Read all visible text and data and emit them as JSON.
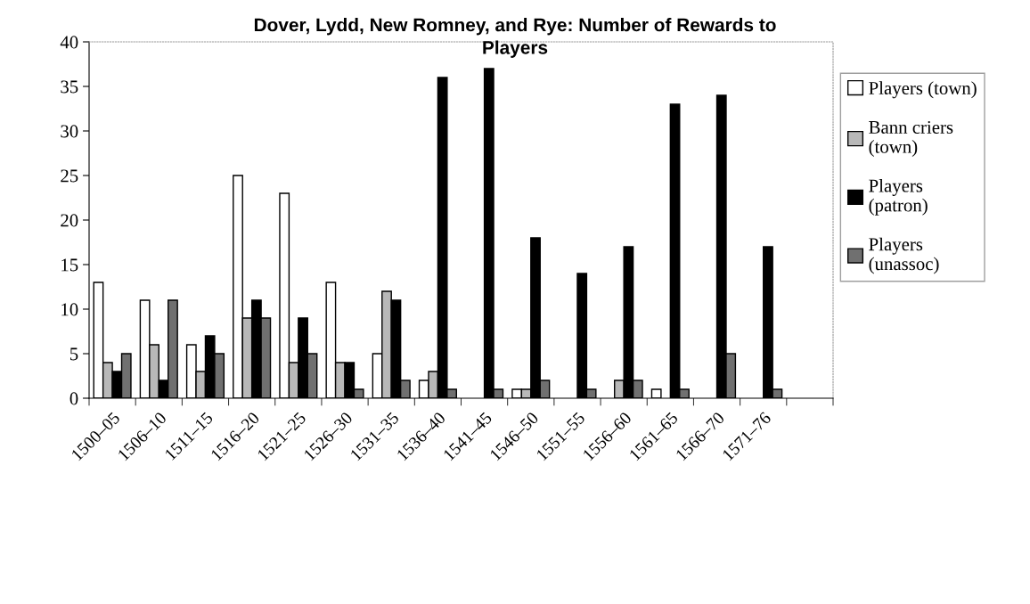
{
  "chart_data": {
    "type": "bar",
    "title": "Dover, Lydd, New Romney, and Rye: Number of Rewards to\nPlayers",
    "categories": [
      "1500–05",
      "1506–10",
      "1511–15",
      "1516–20",
      "1521–25",
      "1526–30",
      "1531–35",
      "1536–40",
      "1541–45",
      "1546–50",
      "1551–55",
      "1556–60",
      "1561–65",
      "1566–70",
      "1571–76",
      null
    ],
    "series": [
      {
        "name": "Players (town)",
        "color": "#ffffff",
        "values": [
          13,
          11,
          6,
          25,
          23,
          13,
          5,
          2,
          0,
          1,
          0,
          0,
          1,
          0,
          0,
          null
        ]
      },
      {
        "name": "Bann criers\n(town)",
        "color": "#b8b8b8",
        "values": [
          4,
          6,
          3,
          9,
          4,
          4,
          12,
          3,
          0,
          1,
          0,
          2,
          0,
          0,
          0,
          null
        ]
      },
      {
        "name": "Players\n(patron)",
        "color": "#000000",
        "values": [
          3,
          2,
          7,
          11,
          9,
          4,
          11,
          36,
          37,
          18,
          14,
          17,
          33,
          34,
          17,
          null
        ]
      },
      {
        "name": "Players\n(unassoc)",
        "color": "#707070",
        "values": [
          5,
          11,
          5,
          9,
          5,
          1,
          2,
          1,
          1,
          2,
          1,
          2,
          1,
          5,
          1,
          null
        ]
      }
    ],
    "ylim": [
      0,
      40
    ],
    "yticks": [
      0,
      5,
      10,
      15,
      20,
      25,
      30,
      35,
      40
    ],
    "grid": false,
    "legend": "right"
  }
}
